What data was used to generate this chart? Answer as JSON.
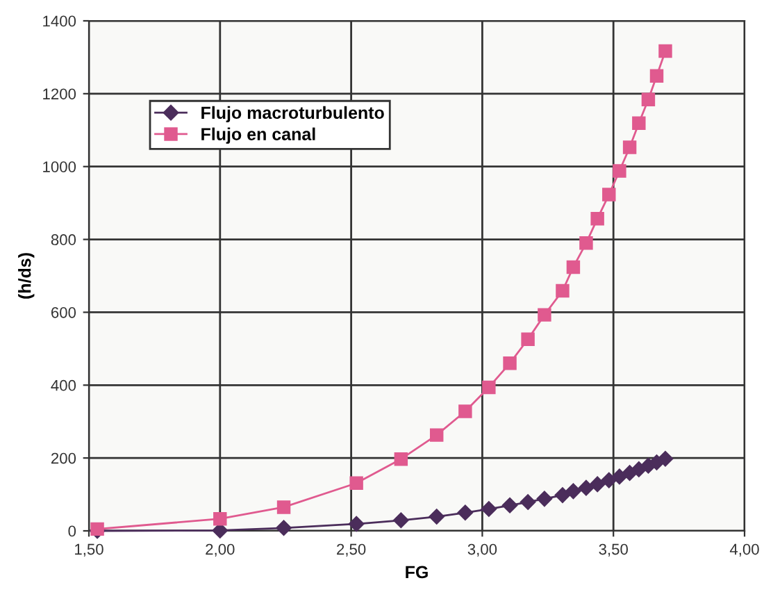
{
  "chart_data": {
    "type": "line",
    "xlabel": "FG",
    "ylabel": "(h/ds)",
    "x": [
      1.532,
      2.0,
      2.243,
      2.52,
      2.69,
      2.826,
      2.935,
      3.025,
      3.105,
      3.174,
      3.237,
      3.306,
      3.347,
      3.396,
      3.439,
      3.483,
      3.523,
      3.562,
      3.597,
      3.633,
      3.665,
      3.698
    ],
    "series": [
      {
        "name": "Flujo macroturbulento",
        "color": "#4b2d5b",
        "marker": "diamond",
        "values": [
          0,
          1,
          8,
          19,
          29,
          39,
          50,
          60,
          70,
          79,
          88,
          98,
          109,
          118,
          128,
          139,
          149,
          159,
          169,
          179,
          188,
          198
        ]
      },
      {
        "name": "Flujo en canal",
        "color": "#e05a8f",
        "marker": "square",
        "values": [
          5,
          33,
          65,
          131,
          197,
          263,
          328,
          394,
          460,
          526,
          593,
          659,
          724,
          790,
          857,
          923,
          988,
          1053,
          1119,
          1184,
          1249,
          1317
        ]
      }
    ],
    "xlim": [
      1.5,
      4.0
    ],
    "ylim": [
      0,
      1400
    ],
    "xticks": [
      {
        "value": 1.5,
        "label": "1,50"
      },
      {
        "value": 2.0,
        "label": "2,00"
      },
      {
        "value": 2.5,
        "label": "2,50"
      },
      {
        "value": 3.0,
        "label": "3,00"
      },
      {
        "value": 3.5,
        "label": "3,50"
      },
      {
        "value": 4.0,
        "label": "4,00"
      }
    ],
    "yticks": [
      0,
      200,
      400,
      600,
      800,
      1000,
      1200,
      1400
    ],
    "grid": true,
    "legend": "top left",
    "line_style": "solid"
  }
}
